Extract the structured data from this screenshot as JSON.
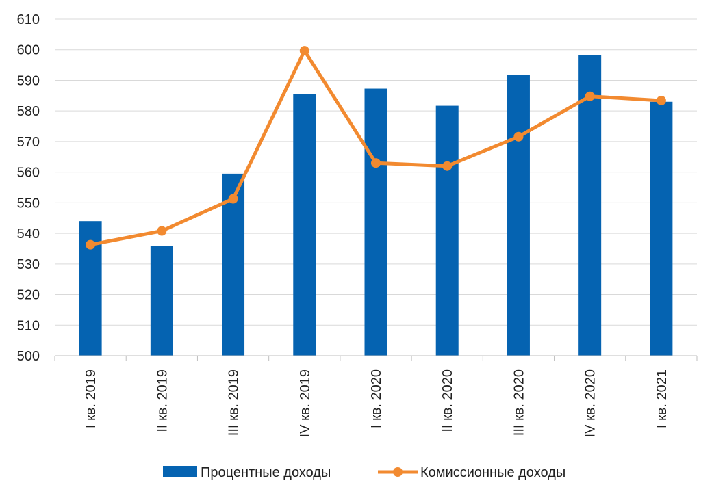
{
  "chart_data": {
    "type": "bar",
    "categories": [
      "I кв. 2019",
      "II кв. 2019",
      "III кв. 2019",
      "IV кв. 2019",
      "I кв. 2020",
      "II кв. 2020",
      "III кв. 2020",
      "IV кв. 2020",
      "I кв. 2021"
    ],
    "series": [
      {
        "name": "Процентные доходы",
        "type": "bar",
        "color": "#0563b1",
        "values": [
          544,
          535.8,
          559.5,
          585.5,
          587.3,
          581.7,
          591.8,
          598.2,
          583
        ]
      },
      {
        "name": "Комиссионные доходы",
        "type": "line",
        "color": "#f28a30",
        "values": [
          536.3,
          540.8,
          551.3,
          599.7,
          563,
          562,
          571.6,
          584.8,
          583.4
        ]
      }
    ],
    "title": "",
    "xlabel": "",
    "ylabel": "",
    "ylim": [
      500,
      610
    ],
    "yticks": [
      "500",
      "510",
      "520",
      "530",
      "540",
      "550",
      "560",
      "570",
      "580",
      "590",
      "600",
      "610"
    ],
    "grid": true,
    "legend_position": "bottom"
  }
}
